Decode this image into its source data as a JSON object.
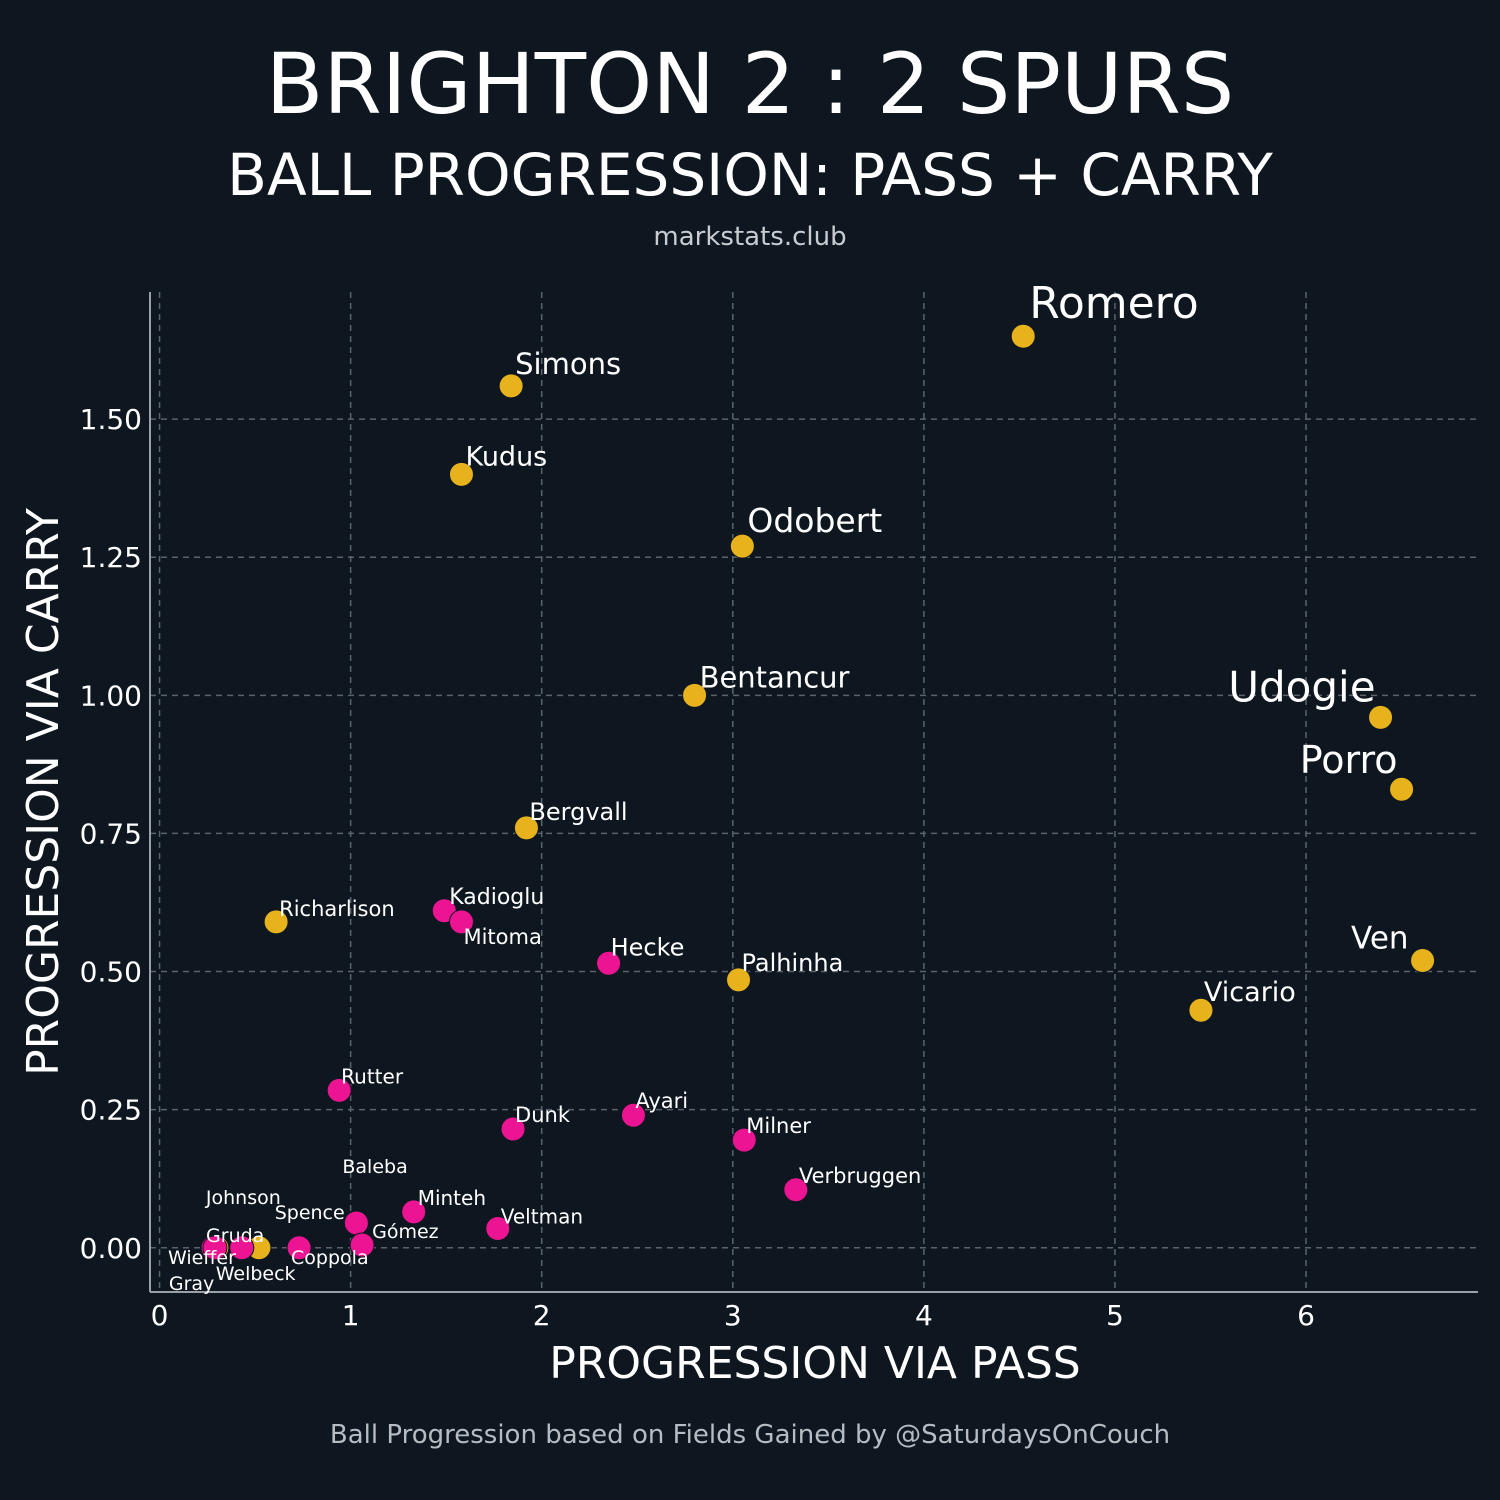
{
  "header": {
    "title": "BRIGHTON 2 : 2 SPURS",
    "subtitle": "BALL PROGRESSION: PASS + CARRY",
    "credit": "markstats.club"
  },
  "footer": {
    "text": "Ball Progression based on Fields Gained by @SaturdaysOnCouch"
  },
  "colors": {
    "background": "#0e1720",
    "spurs": "#e8b21c",
    "brighton": "#ec1493",
    "grid": "#5a636c",
    "axis": "#9aa0a6"
  },
  "chart_data": {
    "type": "scatter",
    "xlabel": "PROGRESSION VIA PASS",
    "ylabel": "PROGRESSION VIA CARRY",
    "xlim": [
      -0.05,
      6.9
    ],
    "ylim": [
      -0.08,
      1.73
    ],
    "xticks": [
      0,
      1,
      2,
      3,
      4,
      5,
      6
    ],
    "xtick_labels": [
      "0",
      "1",
      "2",
      "3",
      "4",
      "5",
      "6"
    ],
    "yticks": [
      0,
      0.25,
      0.5,
      0.75,
      1.0,
      1.25,
      1.5
    ],
    "ytick_labels": [
      "0.00",
      "0.25",
      "0.50",
      "0.75",
      "1.00",
      "1.25",
      "1.50"
    ],
    "grid": true,
    "series": [
      {
        "team": "spurs",
        "points": [
          {
            "name": "Romero",
            "x": 4.52,
            "y": 1.65
          },
          {
            "name": "Simons",
            "x": 1.84,
            "y": 1.56
          },
          {
            "name": "Kudus",
            "x": 1.58,
            "y": 1.4
          },
          {
            "name": "Odobert",
            "x": 3.05,
            "y": 1.27
          },
          {
            "name": "Bentancur",
            "x": 2.8,
            "y": 1.0
          },
          {
            "name": "Udogie",
            "x": 6.39,
            "y": 0.96
          },
          {
            "name": "Porro",
            "x": 6.5,
            "y": 0.83
          },
          {
            "name": "Bergvall",
            "x": 1.92,
            "y": 0.76
          },
          {
            "name": "Richarlison",
            "x": 0.61,
            "y": 0.59
          },
          {
            "name": "Ven",
            "x": 6.61,
            "y": 0.52
          },
          {
            "name": "Palhinha",
            "x": 3.03,
            "y": 0.485
          },
          {
            "name": "Vicario",
            "x": 5.45,
            "y": 0.43
          },
          {
            "name": "Gray",
            "x": 0.3,
            "y": 0.0
          },
          {
            "name": "Johnson",
            "x": 0.52,
            "y": 0.0
          }
        ]
      },
      {
        "team": "brighton",
        "points": [
          {
            "name": "Kadioglu",
            "x": 1.49,
            "y": 0.61
          },
          {
            "name": "Mitoma",
            "x": 1.58,
            "y": 0.59
          },
          {
            "name": "Hecke",
            "x": 2.35,
            "y": 0.515
          },
          {
            "name": "Rutter",
            "x": 0.94,
            "y": 0.285
          },
          {
            "name": "Ayari",
            "x": 2.48,
            "y": 0.24
          },
          {
            "name": "Dunk",
            "x": 1.85,
            "y": 0.215
          },
          {
            "name": "Milner",
            "x": 3.06,
            "y": 0.195
          },
          {
            "name": "Verbruggen",
            "x": 3.33,
            "y": 0.105
          },
          {
            "name": "Minteh",
            "x": 1.33,
            "y": 0.065
          },
          {
            "name": "Baleba",
            "x": 1.03,
            "y": 0.045
          },
          {
            "name": "Veltman",
            "x": 1.77,
            "y": 0.035
          },
          {
            "name": "Gómez",
            "x": 1.06,
            "y": 0.005
          },
          {
            "name": "Coppola",
            "x": 0.73,
            "y": 0.0
          },
          {
            "name": "Spence",
            "x": 0.43,
            "y": 0.0
          },
          {
            "name": "Gruda",
            "x": 0.28,
            "y": 0.0
          },
          {
            "name": "Wieffer",
            "x": 0.29,
            "y": 0.0
          },
          {
            "name": "Welbeck",
            "x": 0.43,
            "y": 0.0
          }
        ]
      }
    ]
  }
}
